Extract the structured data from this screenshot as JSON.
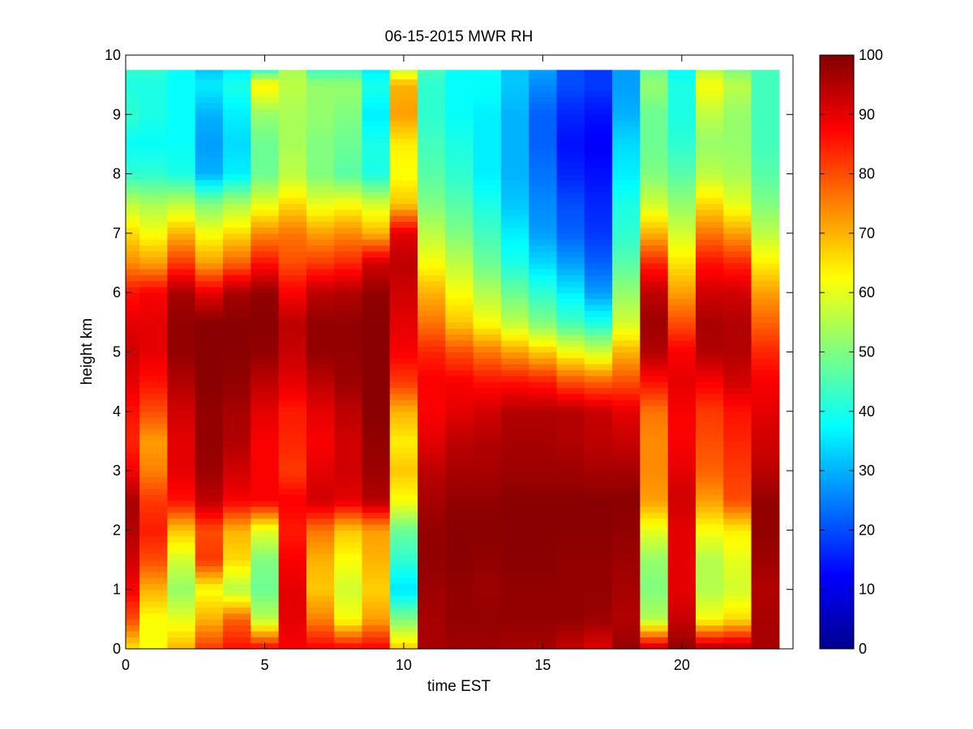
{
  "chart_data": {
    "type": "heatmap",
    "title": "06-15-2015 MWR RH",
    "xlabel": "time EST",
    "ylabel": "height km",
    "xlim": [
      0,
      24
    ],
    "ylim": [
      0,
      10
    ],
    "xticks": [
      0,
      5,
      10,
      15,
      20
    ],
    "yticks": [
      0,
      1,
      2,
      3,
      4,
      5,
      6,
      7,
      8,
      9,
      10
    ],
    "colormap": "jet",
    "clim": [
      0,
      100
    ],
    "colorbar_ticks": [
      0,
      10,
      20,
      30,
      40,
      50,
      60,
      70,
      80,
      90,
      100
    ],
    "x": [
      0.25,
      1,
      2,
      3,
      4,
      5,
      6,
      7,
      8,
      9,
      10,
      11,
      12,
      13,
      14,
      15,
      16,
      17,
      18,
      19,
      20,
      21,
      22,
      23
    ],
    "x_edges": [
      0,
      0.5,
      1.5,
      2.5,
      3.5,
      4.5,
      5.5,
      6.5,
      7.5,
      8.5,
      9.5,
      10.5,
      11.5,
      12.5,
      13.5,
      14.5,
      15.5,
      16.5,
      17.5,
      18.5,
      19.5,
      20.5,
      21.5,
      22.5,
      23.5
    ],
    "y_profile_heights": [
      0,
      0.5,
      1,
      1.5,
      2,
      2.5,
      3,
      3.5,
      4,
      4.5,
      5,
      5.5,
      6,
      6.5,
      7,
      7.5,
      8,
      8.5,
      9,
      9.5,
      9.75
    ],
    "z": [
      [
        65,
        62,
        70,
        82,
        86,
        88,
        88,
        88,
        88,
        88,
        68,
        96,
        97,
        97,
        96,
        96,
        93,
        90,
        98,
        94,
        98,
        96,
        96,
        96
      ],
      [
        80,
        62,
        60,
        70,
        78,
        56,
        90,
        75,
        62,
        72,
        50,
        96,
        98,
        98,
        98,
        98,
        98,
        97,
        95,
        55,
        93,
        62,
        66,
        96
      ],
      [
        88,
        70,
        52,
        62,
        55,
        48,
        90,
        68,
        58,
        67,
        35,
        97,
        98,
        97,
        98,
        98,
        98,
        98,
        96,
        50,
        90,
        55,
        58,
        95
      ],
      [
        92,
        80,
        58,
        82,
        66,
        50,
        88,
        70,
        62,
        70,
        42,
        98,
        99,
        98,
        99,
        99,
        98,
        98,
        97,
        52,
        90,
        55,
        60,
        97
      ],
      [
        95,
        85,
        68,
        80,
        70,
        60,
        85,
        76,
        68,
        72,
        48,
        98,
        99,
        99,
        99,
        99,
        99,
        99,
        98,
        60,
        90,
        62,
        64,
        98
      ],
      [
        96,
        82,
        86,
        94,
        88,
        88,
        88,
        92,
        90,
        95,
        62,
        96,
        98,
        98,
        99,
        99,
        99,
        99,
        99,
        72,
        92,
        72,
        80,
        98
      ],
      [
        88,
        75,
        90,
        97,
        92,
        88,
        82,
        90,
        92,
        97,
        68,
        94,
        96,
        96,
        97,
        97,
        97,
        96,
        96,
        74,
        90,
        78,
        82,
        94
      ],
      [
        84,
        72,
        90,
        98,
        95,
        88,
        84,
        88,
        92,
        98,
        64,
        90,
        94,
        95,
        96,
        96,
        95,
        94,
        93,
        74,
        88,
        80,
        84,
        92
      ],
      [
        86,
        80,
        92,
        98,
        96,
        90,
        85,
        90,
        94,
        99,
        70,
        88,
        90,
        92,
        95,
        95,
        95,
        93,
        90,
        76,
        88,
        82,
        86,
        90
      ],
      [
        90,
        86,
        95,
        99,
        98,
        94,
        90,
        94,
        97,
        99,
        82,
        88,
        88,
        86,
        86,
        85,
        80,
        78,
        80,
        86,
        90,
        88,
        92,
        88
      ],
      [
        92,
        90,
        98,
        99,
        99,
        98,
        93,
        98,
        98,
        99,
        88,
        84,
        80,
        76,
        72,
        68,
        62,
        58,
        70,
        95,
        88,
        95,
        95,
        84
      ],
      [
        90,
        90,
        98,
        99,
        99,
        99,
        94,
        98,
        98,
        99,
        90,
        76,
        68,
        62,
        56,
        50,
        44,
        40,
        58,
        97,
        80,
        96,
        95,
        78
      ],
      [
        86,
        88,
        96,
        90,
        96,
        98,
        88,
        94,
        95,
        98,
        92,
        70,
        62,
        55,
        48,
        42,
        36,
        28,
        52,
        94,
        72,
        92,
        92,
        72
      ],
      [
        74,
        72,
        82,
        72,
        78,
        86,
        80,
        82,
        84,
        92,
        94,
        62,
        56,
        48,
        40,
        34,
        28,
        22,
        46,
        84,
        65,
        86,
        84,
        64
      ],
      [
        66,
        62,
        70,
        62,
        66,
        74,
        76,
        72,
        74,
        70,
        90,
        56,
        50,
        44,
        36,
        28,
        22,
        18,
        42,
        70,
        58,
        76,
        72,
        56
      ],
      [
        56,
        54,
        56,
        50,
        54,
        60,
        66,
        60,
        62,
        58,
        68,
        50,
        46,
        40,
        32,
        26,
        20,
        16,
        40,
        58,
        52,
        66,
        60,
        50
      ],
      [
        42,
        42,
        40,
        30,
        36,
        48,
        56,
        50,
        46,
        40,
        62,
        46,
        42,
        36,
        30,
        24,
        16,
        14,
        36,
        50,
        46,
        56,
        54,
        46
      ],
      [
        38,
        38,
        38,
        28,
        34,
        48,
        54,
        50,
        48,
        40,
        64,
        44,
        40,
        36,
        30,
        22,
        14,
        12,
        34,
        48,
        42,
        52,
        52,
        44
      ],
      [
        42,
        40,
        38,
        30,
        36,
        52,
        54,
        52,
        50,
        36,
        72,
        42,
        38,
        36,
        30,
        22,
        16,
        14,
        30,
        48,
        40,
        56,
        52,
        44
      ],
      [
        40,
        40,
        38,
        36,
        40,
        64,
        56,
        52,
        52,
        40,
        70,
        42,
        38,
        38,
        32,
        26,
        20,
        18,
        28,
        52,
        40,
        62,
        56,
        44
      ],
      [
        42,
        42,
        38,
        32,
        36,
        44,
        54,
        44,
        44,
        36,
        58,
        44,
        38,
        38,
        32,
        28,
        20,
        18,
        28,
        48,
        38,
        56,
        50,
        44
      ]
    ]
  }
}
